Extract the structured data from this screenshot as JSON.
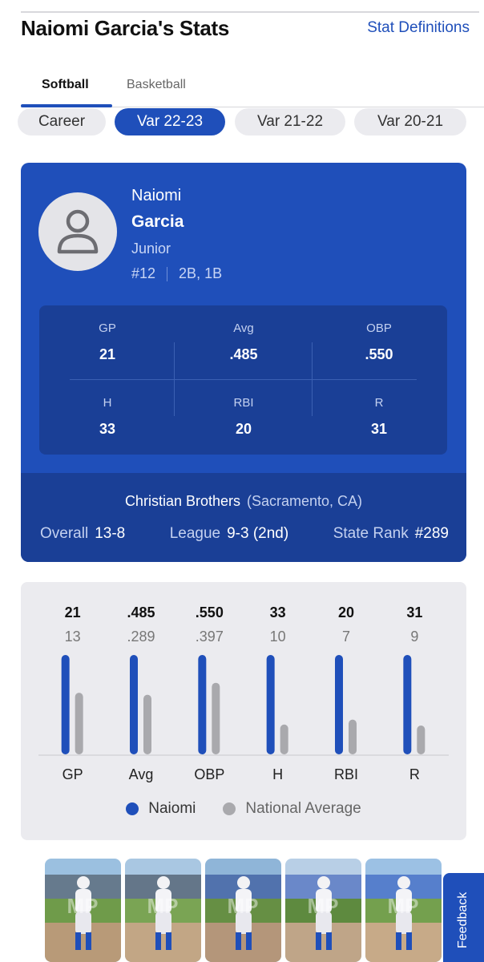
{
  "header": {
    "title": "Naiomi Garcia's Stats",
    "stat_definitions_link": "Stat Definitions"
  },
  "sport_tabs": [
    {
      "label": "Softball",
      "active": true
    },
    {
      "label": "Basketball",
      "active": false
    }
  ],
  "season_tabs": [
    {
      "label": "Career",
      "active": false
    },
    {
      "label": "Var 22-23",
      "active": true
    },
    {
      "label": "Var 21-22",
      "active": false
    },
    {
      "label": "Var 20-21",
      "active": false
    }
  ],
  "profile": {
    "first_name": "Naiomi",
    "last_name": "Garcia",
    "grade": "Junior",
    "number": "#12",
    "positions": "2B, 1B",
    "avatar_icon": "person-icon"
  },
  "season_stats": [
    {
      "label": "GP",
      "value": "21"
    },
    {
      "label": "Avg",
      "value": ".485"
    },
    {
      "label": "OBP",
      "value": ".550"
    },
    {
      "label": "H",
      "value": "33"
    },
    {
      "label": "RBI",
      "value": "20"
    },
    {
      "label": "R",
      "value": "31"
    }
  ],
  "team": {
    "name": "Christian Brothers",
    "location": "(Sacramento, CA)",
    "overall_label": "Overall",
    "overall_value": "13-8",
    "league_label": "League",
    "league_value": "9-3 (2nd)",
    "state_rank_label": "State Rank",
    "state_rank_value": "#289"
  },
  "chart_data": {
    "type": "bar",
    "categories": [
      "GP",
      "Avg",
      "OBP",
      "H",
      "RBI",
      "R"
    ],
    "series": [
      {
        "name": "Naiomi",
        "labels": [
          "21",
          ".485",
          ".550",
          "33",
          "20",
          "31"
        ],
        "relative_height": [
          1,
          1,
          1,
          1,
          1,
          1
        ],
        "color": "#1f4fba"
      },
      {
        "name": "National Average",
        "labels": [
          "13",
          ".289",
          ".397",
          "10",
          "7",
          "9"
        ],
        "relative_height": [
          0.62,
          0.6,
          0.72,
          0.3,
          0.35,
          0.29
        ],
        "color": "#a9a9ad"
      }
    ],
    "legend": "bottom-center"
  },
  "photos": [
    {
      "name": "photo-1"
    },
    {
      "name": "photo-2"
    },
    {
      "name": "photo-3"
    },
    {
      "name": "photo-4"
    },
    {
      "name": "photo-5"
    }
  ],
  "feedback_label": "Feedback",
  "colors": {
    "accent": "#1f4fba",
    "accent_dark": "#1a3f96",
    "national_average": "#a9a9ad"
  }
}
